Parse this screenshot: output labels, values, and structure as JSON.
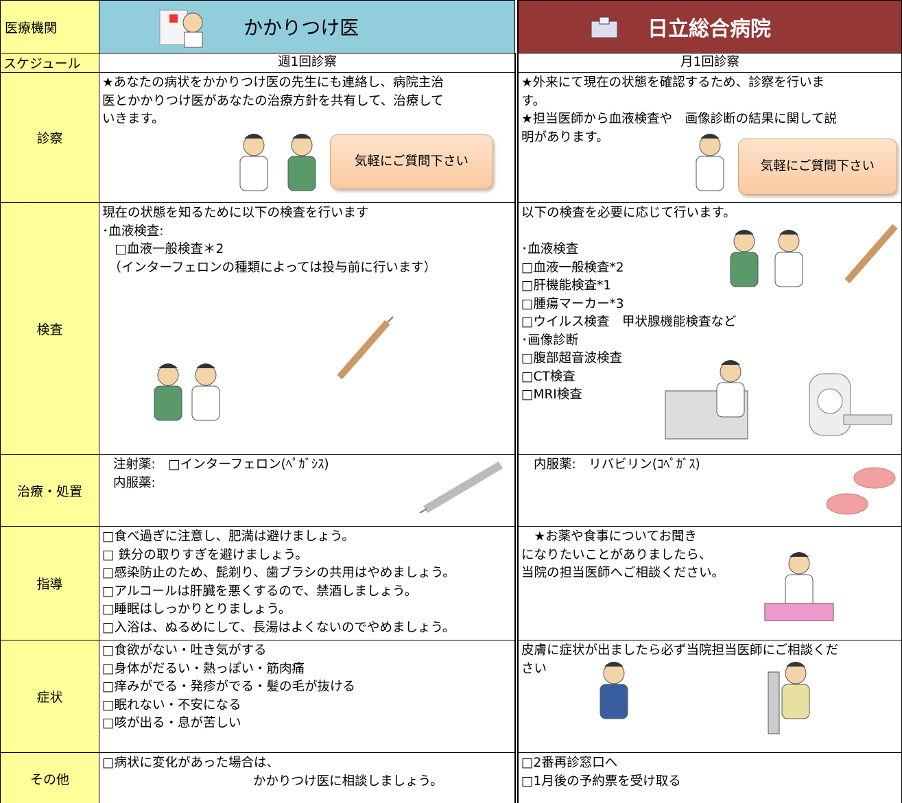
{
  "header": {
    "label": "医療機関",
    "clinic": "かかりつけ医",
    "hospital": "日立総合病院"
  },
  "rows": [
    {
      "label": "スケジュール",
      "clinic": [
        "週1回診察"
      ],
      "hospital": [
        "月1回診察"
      ]
    },
    {
      "label": "診察",
      "clinic": [
        "★あなたの病状をかかりつけ医の先生にも連絡し、病院主治",
        "医とかかりつけ医があなたの治療方針を共有して、治療して",
        "いきます。"
      ],
      "clinic_note": "気軽にご質問下さい",
      "hospital": [
        "★外来にて現在の状態を確認するため、診察を行いま",
        "す。",
        "★担当医師から血液検査や　画像診断の結果に関して説",
        "明があります。"
      ],
      "hospital_note": "気軽にご質問下さい"
    },
    {
      "label": "検査",
      "clinic": [
        "現在の状態を知るために以下の検査を行います",
        "･血液検査:",
        "　□血液一般検査＊2",
        "　（インターフェロンの種類によっては投与前に行います）"
      ],
      "hospital": [
        "以下の検査を必要に応じて行います。",
        "",
        "･血液検査",
        "□血液一般検査*2",
        "□肝機能検査*1",
        "□腫瘍マーカー*3",
        "□ウイルス検査　甲状腺機能検査など",
        "･画像診断",
        "□腹部超音波検査",
        "□CT検査",
        "□MRI検査"
      ]
    },
    {
      "label": "治療・処置",
      "clinic": [
        "注射薬:　□インターフェロン(ﾍﾟｶﾞｼｽ)",
        "内服薬:"
      ],
      "hospital": [
        "内服薬:　リバビリン(ｺﾍﾟｶﾞｽ)"
      ]
    },
    {
      "label": "指導",
      "clinic": [
        "□食べ過ぎに注意し、肥満は避けましょう。",
        "□ 鉄分の取りすぎを避けましょう。",
        "□感染防止のため、髭剃り、歯ブラシの共用はやめましょう。",
        "□アルコールは肝臓を悪くするので、禁酒しましょう。",
        "□睡眠はしっかりとりましょう。",
        "□入浴は、ぬるめにして、長湯はよくないのでやめましょう。"
      ],
      "hospital": [
        "　★お薬や食事についてお聞き",
        "になりたいことがありましたら、",
        "当院の担当医師へご相談ください。"
      ]
    },
    {
      "label": "症状",
      "clinic": [
        "□食欲がない・吐き気がする",
        "□身体がだるい・熱っぽい・筋肉痛",
        "□痒みがでる・発疹がでる・髪の毛が抜ける",
        "□眠れない・不安になる",
        "□咳が出る・息が苦しい"
      ],
      "hospital": [
        "皮膚に症状が出ましたら必ず当院担当医師にご相談くだ",
        "さい"
      ]
    },
    {
      "label": "その他",
      "clinic": [
        "□病状に変化があった場合は、",
        "かかりつけ医に相談しましょう。"
      ],
      "hospital": [
        "□2番再診窓口へ",
        "□1月後の予約票を受け取る"
      ]
    }
  ]
}
